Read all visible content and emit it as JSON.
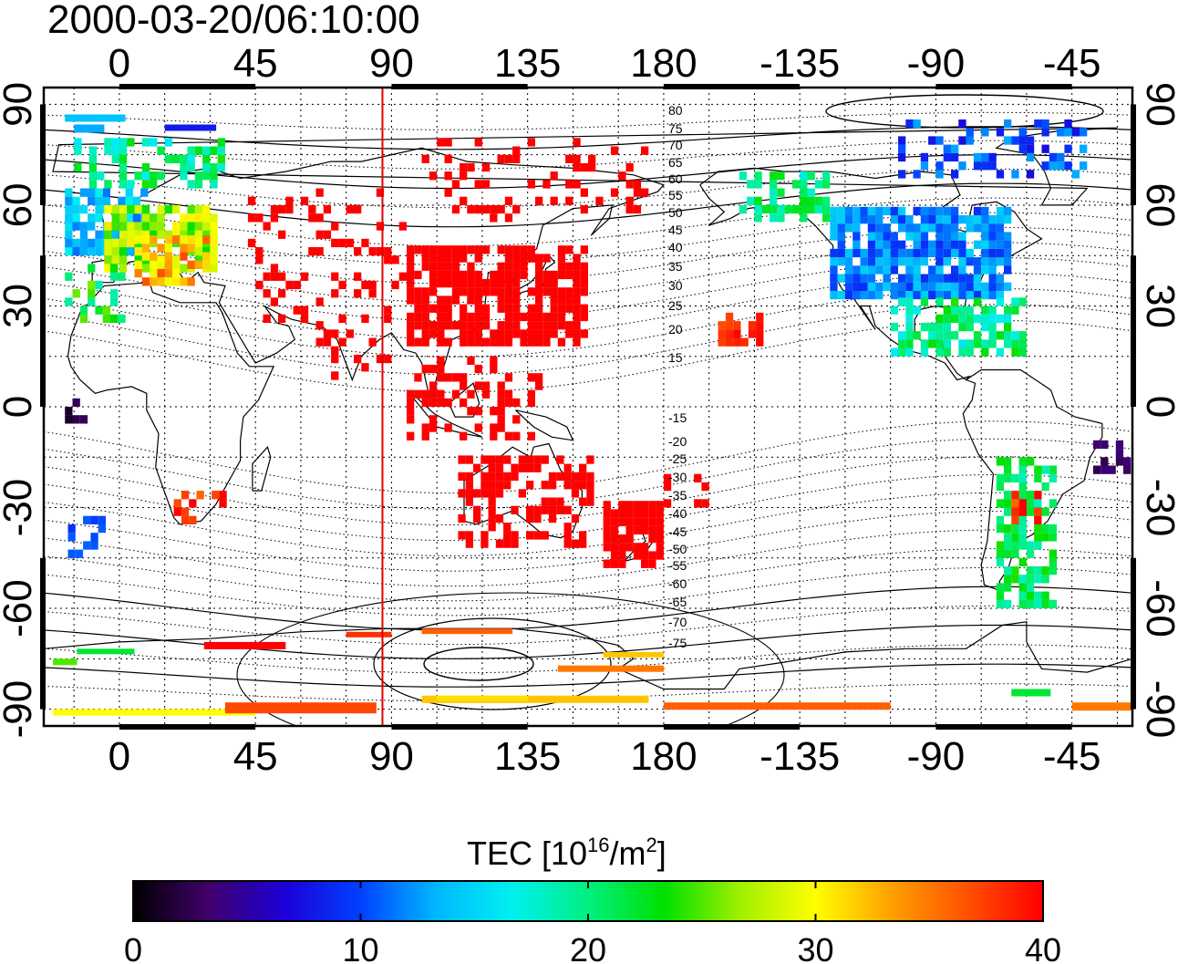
{
  "title": "2000-03-20/06:10:00",
  "colorbar": {
    "label_main": "TEC  [10",
    "label_sup1": "16",
    "label_mid": "/m",
    "label_sup2": "2",
    "label_end": "]",
    "ticks": [
      "0",
      "10",
      "20",
      "30",
      "40"
    ],
    "tick_values": [
      0,
      10,
      20,
      30,
      40
    ],
    "stops": [
      "#000000",
      "#40006a",
      "#1c00d8",
      "#0040ff",
      "#00b8ff",
      "#00f0f0",
      "#00f080",
      "#00e000",
      "#a0f000",
      "#ffff00",
      "#ffa000",
      "#ff5000",
      "#ff0000"
    ]
  },
  "map": {
    "x_ticks_top": [
      "0",
      "45",
      "90",
      "135",
      "180",
      "-135",
      "-90",
      "-45"
    ],
    "x_ticks_bottom": [
      "0",
      "45",
      "90",
      "135",
      "180",
      "-135",
      "-90",
      "-45"
    ],
    "y_ticks_left": [
      "90",
      "60",
      "30",
      "0",
      "-30",
      "-60",
      "-90"
    ],
    "y_ticks_right": [
      "90",
      "60",
      "30",
      "0",
      "-30",
      "-60",
      "-90"
    ],
    "lon_range": [
      -25,
      335
    ],
    "lat_range": [
      -95,
      95
    ],
    "terminator_longitude": 87,
    "terminator_color": "#e00000",
    "contour_labels": [
      "80",
      "75",
      "70",
      "65",
      "60",
      "55",
      "50",
      "45",
      "40",
      "35",
      "30",
      "25",
      "20",
      "15",
      "-15",
      "-20",
      "-25",
      "-30",
      "-35",
      "-40",
      "-45",
      "-50",
      "-55",
      "-60",
      "-65",
      "-70",
      "-75"
    ]
  },
  "chart_data": {
    "type": "heatmap",
    "title": "2000-03-20/06:10:00",
    "xlabel": "",
    "ylabel": "",
    "xlim": [
      -25,
      335
    ],
    "ylim": [
      -95,
      95
    ],
    "colorbar_label": "TEC [10^16/m^2]",
    "colorbar_range": [
      0,
      40
    ],
    "regions": [
      {
        "lon": [
          -15,
          10
        ],
        "lat": [
          45,
          62
        ],
        "tec": 14
      },
      {
        "lon": [
          0,
          32
        ],
        "lat": [
          42,
          62
        ],
        "tec": 26
      },
      {
        "lon": [
          10,
          30
        ],
        "lat": [
          38,
          55
        ],
        "tec": 33
      },
      {
        "lon": [
          -15,
          40
        ],
        "lat": [
          70,
          85
        ],
        "tec": 18
      },
      {
        "lon": [
          235,
          290
        ],
        "lat": [
          30,
          55
        ],
        "tec": 12
      },
      {
        "lon": [
          250,
          300
        ],
        "lat": [
          10,
          30
        ],
        "tec": 20
      },
      {
        "lon": [
          295,
          310
        ],
        "lat": [
          -60,
          -20
        ],
        "tec": 21
      },
      {
        "lon": [
          95,
          150
        ],
        "lat": [
          20,
          48
        ],
        "tec": 40
      },
      {
        "lon": [
          110,
          155
        ],
        "lat": [
          -40,
          -15
        ],
        "tec": 40
      },
      {
        "lon": [
          160,
          180
        ],
        "lat": [
          -48,
          -30
        ],
        "tec": 40
      },
      {
        "lon": [
          180,
          255
        ],
        "lat": [
          -90,
          -86
        ],
        "tec": 35
      },
      {
        "lon": [
          95,
          175
        ],
        "lat": [
          -90,
          -86
        ],
        "tec": 32
      }
    ]
  }
}
